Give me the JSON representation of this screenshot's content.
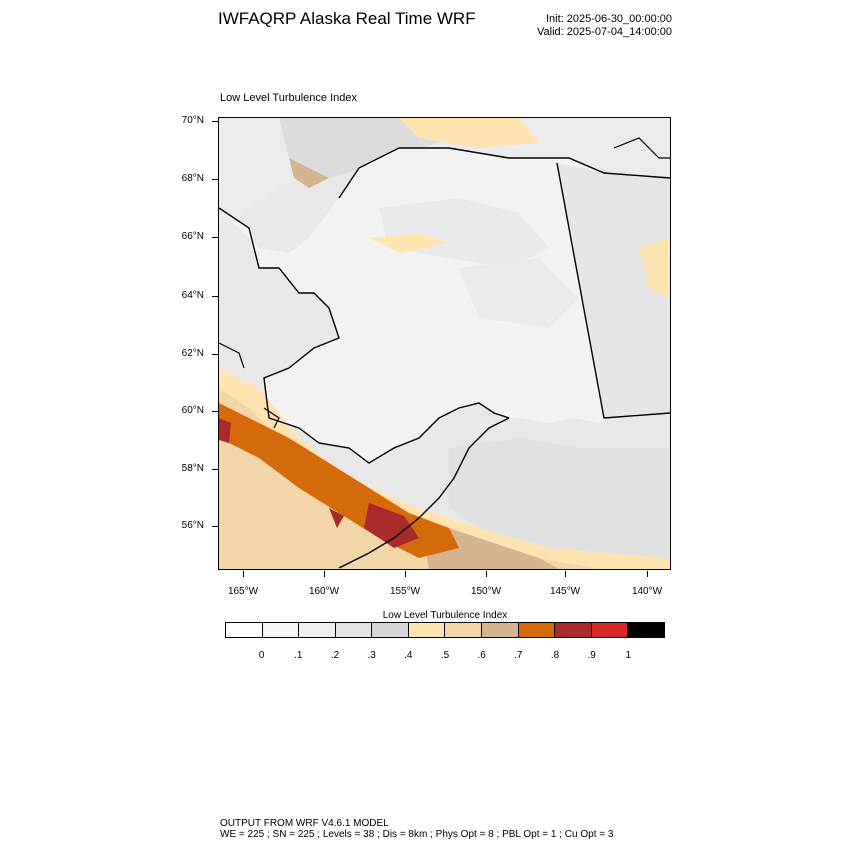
{
  "header": {
    "title": "IWFAQRP Alaska Real Time WRF",
    "init": "Init: 2025-06-30_00:00:00",
    "valid": "Valid: 2025-07-04_14:00:00"
  },
  "plot": {
    "label": "Low Level Turbulence Index",
    "lat_labels": [
      "70°N",
      "68°N",
      "66°N",
      "64°N",
      "62°N",
      "60°N",
      "58°N",
      "56°N"
    ],
    "lon_labels": [
      "165°W",
      "160°W",
      "155°W",
      "150°W",
      "145°W",
      "140°W"
    ]
  },
  "colorbar": {
    "title": "Low Level Turbulence Index",
    "colors": [
      "#ffffff",
      "#f7f7f7",
      "#efefef",
      "#e3e3e3",
      "#d6d6d6",
      "#ffe3b0",
      "#f2d6a8",
      "#d5b58f",
      "#d46a0a",
      "#a82a2a",
      "#d62828",
      "#000000"
    ],
    "labels": [
      "0",
      ".1",
      ".2",
      ".3",
      ".4",
      ".5",
      ".6",
      ".7",
      ".8",
      ".9",
      "1"
    ]
  },
  "footer": {
    "line1": "OUTPUT FROM WRF V4.6.1 MODEL",
    "line2": "WE = 225 ; SN = 225 ; Levels = 38 ; Dis = 8km ; Phys Opt = 8 ; PBL Opt = 1 ; Cu Opt = 3"
  }
}
